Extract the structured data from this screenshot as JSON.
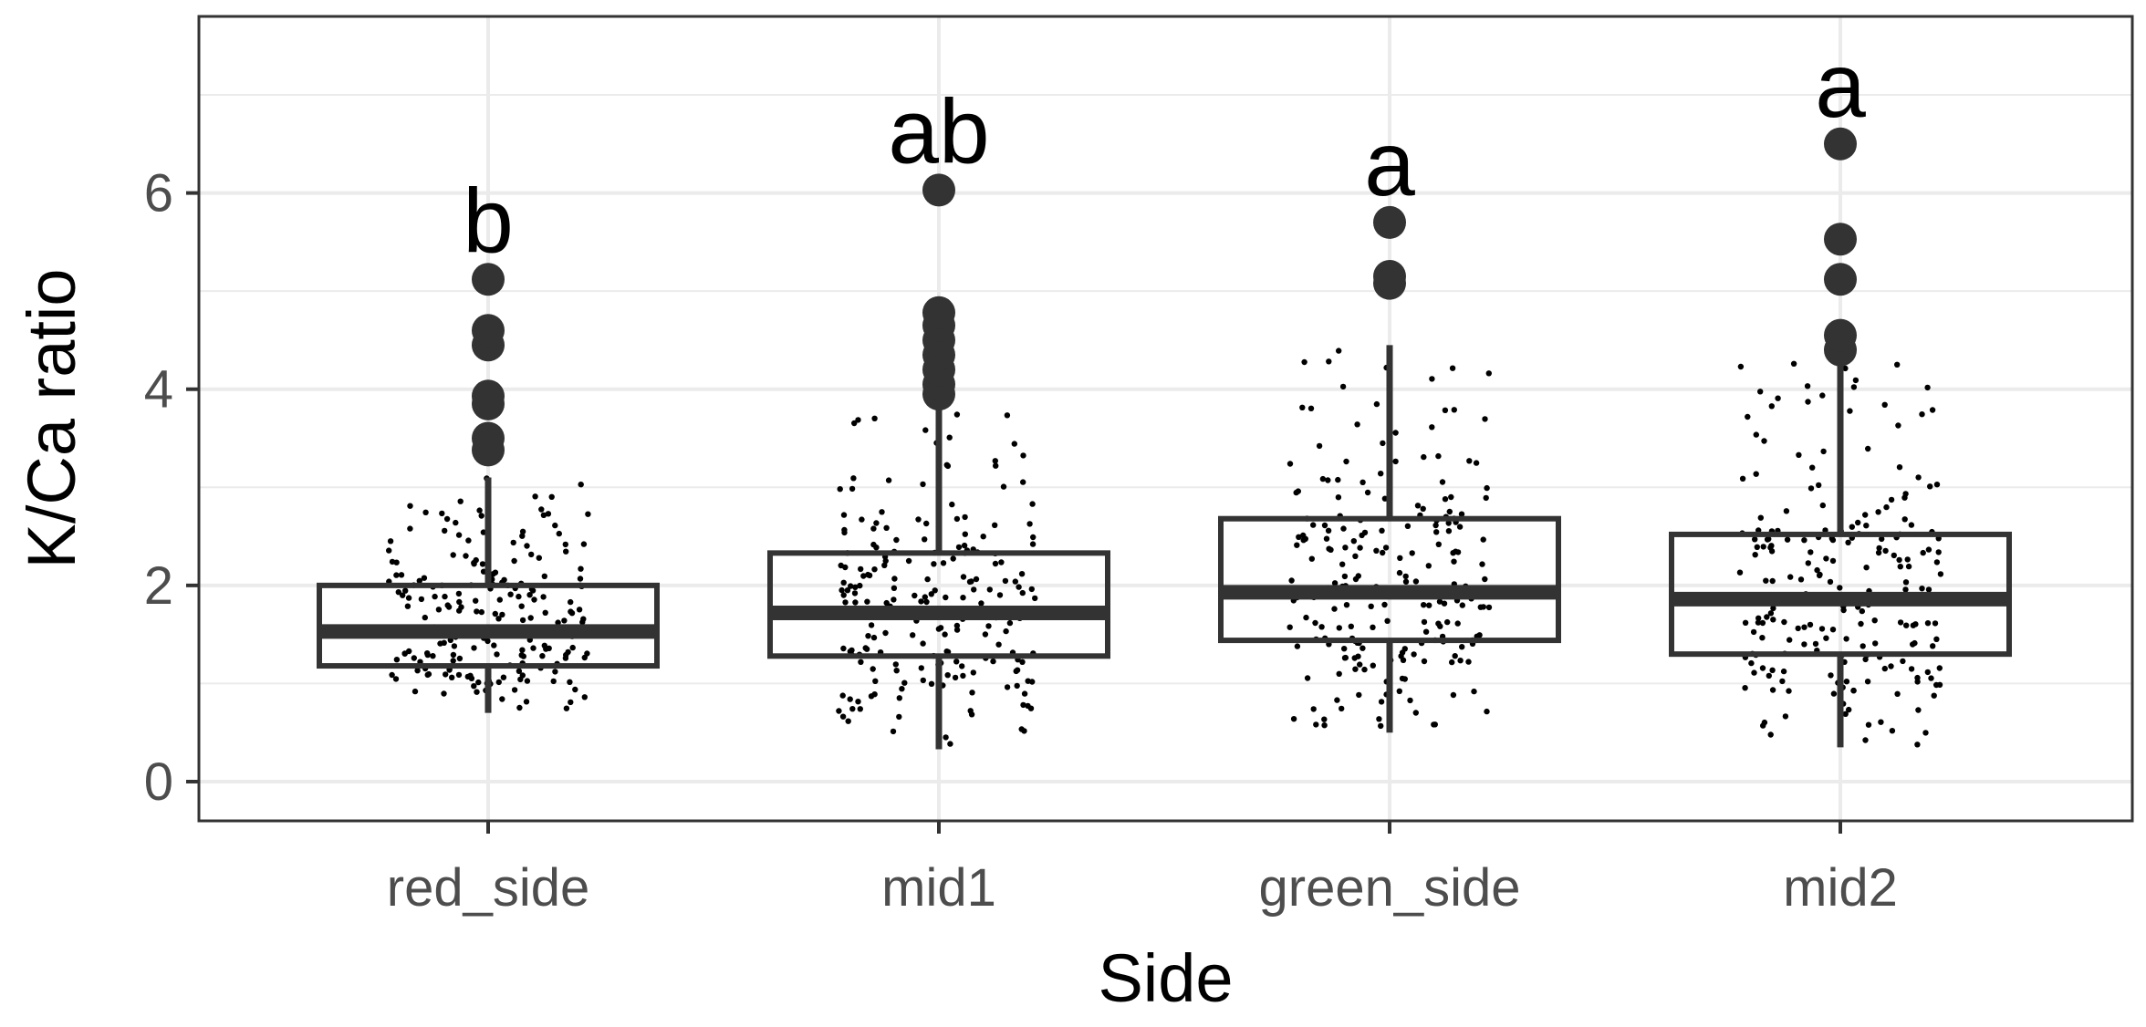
{
  "chart_data": {
    "type": "box",
    "xlabel": "Side",
    "ylabel": "K/Ca ratio",
    "categories": [
      "red_side",
      "mid1",
      "green_side",
      "mid2"
    ],
    "ylim": [
      -0.4,
      7.8
    ],
    "yticks": [
      0,
      2,
      4,
      6
    ],
    "grid": true,
    "legend": "none",
    "boxes": [
      {
        "category": "red_side",
        "q1": 1.18,
        "median": 1.53,
        "q3": 2.0,
        "whisker_low": 0.7,
        "whisker_high": 3.1,
        "outliers": [
          3.38,
          3.5,
          3.85,
          3.93,
          4.45,
          4.6,
          5.12
        ],
        "letter": "b"
      },
      {
        "category": "mid1",
        "q1": 1.28,
        "median": 1.72,
        "q3": 2.33,
        "whisker_low": 0.33,
        "whisker_high": 3.85,
        "outliers": [
          3.95,
          4.05,
          4.2,
          4.35,
          4.5,
          4.65,
          4.78,
          6.03
        ],
        "letter": "ab"
      },
      {
        "category": "green_side",
        "q1": 1.44,
        "median": 1.93,
        "q3": 2.68,
        "whisker_low": 0.5,
        "whisker_high": 4.45,
        "outliers": [
          5.08,
          5.15,
          5.7
        ],
        "letter": "a"
      },
      {
        "category": "mid2",
        "q1": 1.3,
        "median": 1.86,
        "q3": 2.52,
        "whisker_low": 0.35,
        "whisker_high": 4.3,
        "outliers": [
          4.4,
          4.55,
          5.12,
          5.53,
          6.5
        ],
        "letter": "a"
      }
    ],
    "colors": {
      "box_line": "#333333",
      "point": "#000000",
      "outlier": "#333333",
      "grid": "#ebebeb",
      "panel_border": "#333333"
    }
  }
}
